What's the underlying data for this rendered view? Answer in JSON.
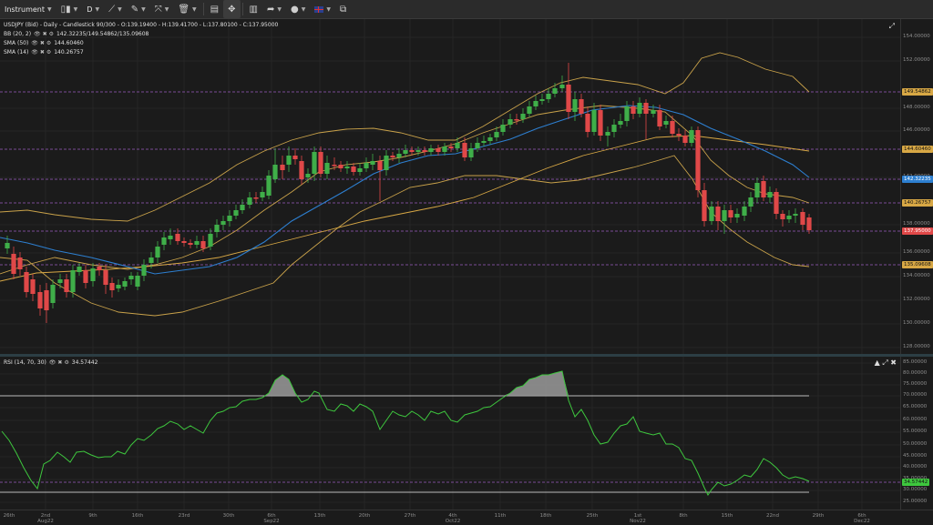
{
  "toolbar": {
    "instrument_label": "Instrument",
    "timeframe_label": "D"
  },
  "legend": {
    "title": "USDJPY (Bid) - Daily - Candlestick",
    "counter": "90/300",
    "ohlc": "O:139.19400 - H:139.41700 - L:137.80100 - C:137.95000",
    "bb_label": "BB (20, 2)",
    "bb_values": "142.32235/149.54862/135.09608",
    "sma50_label": "SMA (50)",
    "sma50_value": "144.60460",
    "sma14_label": "SMA (14)",
    "sma14_value": "140.26757",
    "rsi_label": "RSI (14, 70, 30)",
    "rsi_value": "34.57442"
  },
  "price_axis": {
    "ticks": [
      "154.00000",
      "152.00000",
      "148.00000",
      "146.00000",
      "142.00000",
      "138.00000",
      "136.00000",
      "134.00000",
      "132.00000",
      "130.00000",
      "128.00000"
    ],
    "tags": [
      {
        "text": "149.54862",
        "bg": "#d8a845",
        "fg": "#111"
      },
      {
        "text": "144.60460",
        "bg": "#d8a845",
        "fg": "#111"
      },
      {
        "text": "142.32235",
        "bg": "#2d7fd0",
        "fg": "#fff"
      },
      {
        "text": "140.26757",
        "bg": "#d8a845",
        "fg": "#111"
      },
      {
        "text": "137.95000",
        "bg": "#e04848",
        "fg": "#fff"
      },
      {
        "text": "135.09608",
        "bg": "#d8a845",
        "fg": "#111"
      }
    ]
  },
  "rsi_axis": {
    "ticks": [
      "85.00000",
      "80.00000",
      "75.00000",
      "70.00000",
      "65.00000",
      "60.00000",
      "55.00000",
      "50.00000",
      "45.00000",
      "40.00000",
      "35.00000",
      "30.00000",
      "25.00000"
    ],
    "tag": {
      "text": "34.57442",
      "bg": "#3ec73e",
      "fg": "#111"
    }
  },
  "xaxis": [
    {
      "l1": "26th",
      "l2": ""
    },
    {
      "l1": "2nd",
      "l2": "Aug22"
    },
    {
      "l1": "9th",
      "l2": ""
    },
    {
      "l1": "16th",
      "l2": ""
    },
    {
      "l1": "23rd",
      "l2": ""
    },
    {
      "l1": "30th",
      "l2": ""
    },
    {
      "l1": "6th",
      "l2": "Sep22"
    },
    {
      "l1": "13th",
      "l2": ""
    },
    {
      "l1": "20th",
      "l2": ""
    },
    {
      "l1": "27th",
      "l2": ""
    },
    {
      "l1": "4th",
      "l2": "Oct22"
    },
    {
      "l1": "11th",
      "l2": ""
    },
    {
      "l1": "18th",
      "l2": ""
    },
    {
      "l1": "25th",
      "l2": ""
    },
    {
      "l1": "1st",
      "l2": "Nov22"
    },
    {
      "l1": "8th",
      "l2": ""
    },
    {
      "l1": "15th",
      "l2": ""
    },
    {
      "l1": "22nd",
      "l2": ""
    },
    {
      "l1": "29th",
      "l2": ""
    },
    {
      "l1": "6th",
      "l2": "Dec22"
    }
  ],
  "colors": {
    "bull": "#3fae49",
    "bear": "#e04848",
    "bb": "#c9a24a",
    "sma50": "#d8a845",
    "sma14": "#2d7fd0",
    "rsi": "#3ec73e"
  }
}
